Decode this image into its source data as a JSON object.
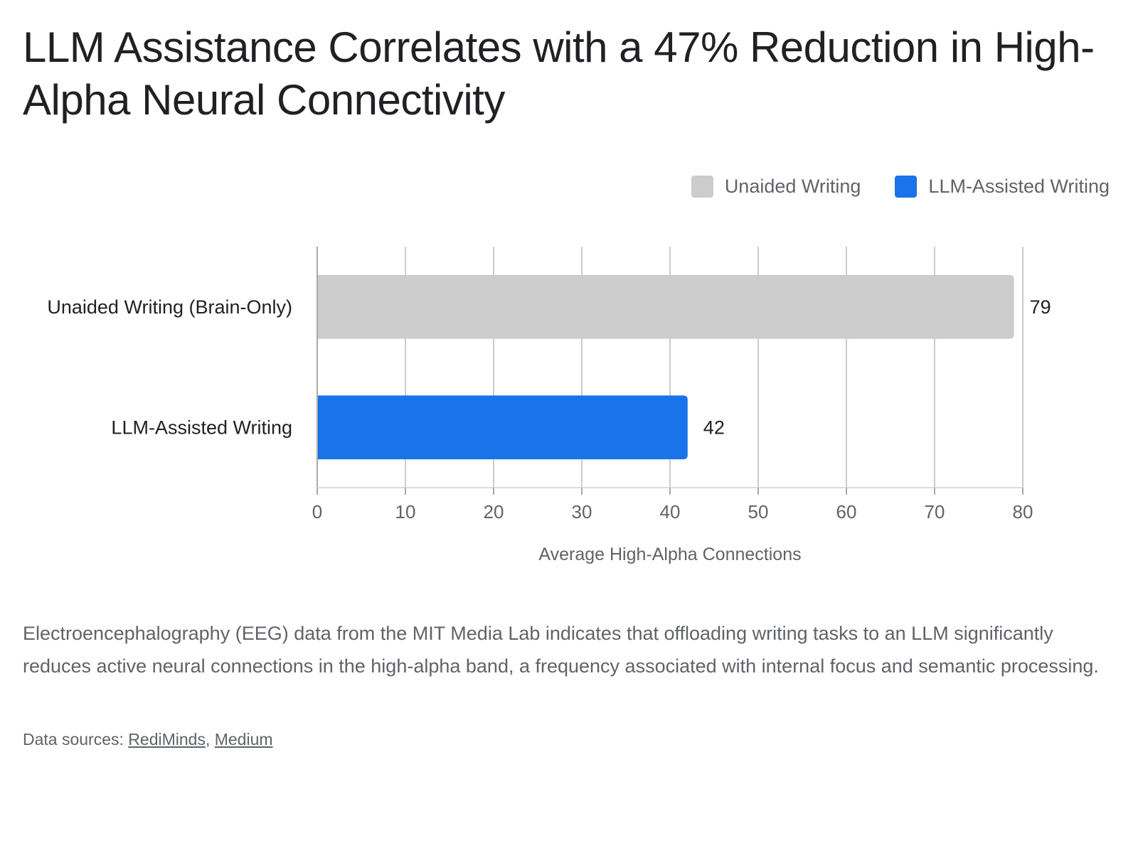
{
  "header": {
    "title": "LLM Assistance Correlates with a 47% Reduction in High-Alpha Neural Connectivity"
  },
  "legend": {
    "items": [
      {
        "label": "Unaided Writing",
        "color": "#cccccc"
      },
      {
        "label": "LLM-Assisted Writing",
        "color": "#1a73e8"
      }
    ]
  },
  "chart_data": {
    "type": "bar",
    "orientation": "horizontal",
    "categories": [
      "Unaided Writing (Brain-Only)",
      "LLM-Assisted Writing"
    ],
    "values": [
      79,
      42
    ],
    "colors": [
      "#cccccc",
      "#1a73e8"
    ],
    "xlabel": "Average High-Alpha Connections",
    "xlim": [
      0,
      80
    ],
    "xticks": [
      0,
      10,
      20,
      30,
      40,
      50,
      60,
      70,
      80
    ],
    "grid": true,
    "legend_position": "top-right"
  },
  "footer": {
    "description": "Electroencephalography (EEG) data from the MIT Media Lab indicates that offloading writing tasks to an LLM significantly reduces active neural connections in the high-alpha band, a frequency associated with internal focus and semantic processing.",
    "sources_label": "Data sources:",
    "sources": [
      "RediMinds",
      "Medium"
    ],
    "separator": ","
  }
}
